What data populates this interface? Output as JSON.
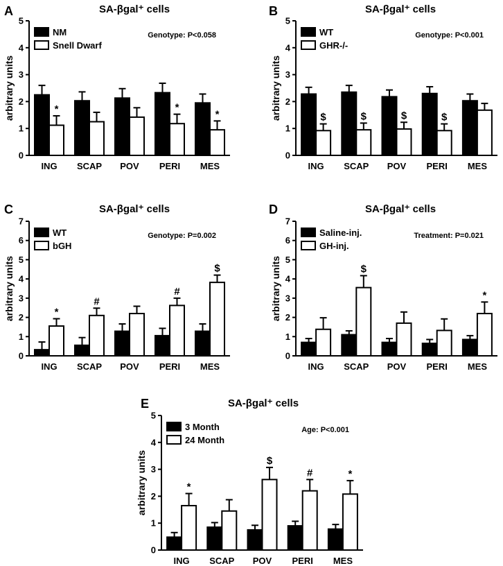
{
  "chart_data": [
    {
      "panel": "A",
      "type": "bar",
      "title": "SA-βgal⁺ cells",
      "xlabel": "",
      "ylabel": "arbitrary units",
      "ylim": [
        0,
        5
      ],
      "yticks": [
        0,
        1,
        2,
        3,
        4,
        5
      ],
      "categories": [
        "ING",
        "SCAP",
        "POV",
        "PERI",
        "MES"
      ],
      "series": [
        {
          "name": "NM",
          "fill": "#000000",
          "values": [
            2.25,
            2.03,
            2.13,
            2.33,
            1.95
          ],
          "errors": [
            0.35,
            0.33,
            0.35,
            0.35,
            0.33
          ]
        },
        {
          "name": "Snell Dwarf",
          "fill": "#ffffff",
          "values": [
            1.12,
            1.25,
            1.42,
            1.18,
            0.95
          ],
          "errors": [
            0.35,
            0.35,
            0.35,
            0.35,
            0.33
          ]
        }
      ],
      "annotations": [
        "*",
        "",
        "",
        "*",
        "*"
      ],
      "stat_text": "Genotype: P<0.058",
      "legend": "top-left"
    },
    {
      "panel": "B",
      "type": "bar",
      "title": "SA-βgal⁺ cells",
      "xlabel": "",
      "ylabel": "arbitrary units",
      "ylim": [
        0,
        5
      ],
      "yticks": [
        0,
        1,
        2,
        3,
        4,
        5
      ],
      "categories": [
        "ING",
        "SCAP",
        "POV",
        "PERI",
        "MES"
      ],
      "series": [
        {
          "name": "WT",
          "fill": "#000000",
          "values": [
            2.28,
            2.35,
            2.18,
            2.3,
            2.03
          ],
          "errors": [
            0.25,
            0.25,
            0.25,
            0.25,
            0.25
          ]
        },
        {
          "name": "GHR-/-",
          "fill": "#ffffff",
          "values": [
            0.92,
            0.95,
            0.98,
            0.92,
            1.68
          ],
          "errors": [
            0.25,
            0.25,
            0.25,
            0.25,
            0.25
          ]
        }
      ],
      "annotations": [
        "$",
        "$",
        "$",
        "$",
        ""
      ],
      "stat_text": "Genotype: P<0.001",
      "legend": "top-left"
    },
    {
      "panel": "C",
      "type": "bar",
      "title": "SA-βgal⁺ cells",
      "xlabel": "",
      "ylabel": "arbitrary units",
      "ylim": [
        0,
        7
      ],
      "yticks": [
        0,
        1,
        2,
        3,
        4,
        5,
        6,
        7
      ],
      "categories": [
        "ING",
        "SCAP",
        "POV",
        "PERI",
        "MES"
      ],
      "series": [
        {
          "name": "WT",
          "fill": "#000000",
          "values": [
            0.32,
            0.55,
            1.28,
            1.05,
            1.28
          ],
          "errors": [
            0.4,
            0.4,
            0.38,
            0.38,
            0.38
          ]
        },
        {
          "name": "bGH",
          "fill": "#ffffff",
          "values": [
            1.55,
            2.1,
            2.2,
            2.62,
            3.82
          ],
          "errors": [
            0.38,
            0.38,
            0.38,
            0.38,
            0.38
          ]
        }
      ],
      "annotations": [
        "*",
        "#",
        "",
        "#",
        "$"
      ],
      "stat_text": "Genotype: P=0.002",
      "legend": "top-left"
    },
    {
      "panel": "D",
      "type": "bar",
      "title": "SA-βgal⁺ cells",
      "xlabel": "",
      "ylabel": "arbitrary units",
      "ylim": [
        0,
        7
      ],
      "yticks": [
        0,
        1,
        2,
        3,
        4,
        5,
        6,
        7
      ],
      "categories": [
        "ING",
        "SCAP",
        "POV",
        "PERI",
        "MES"
      ],
      "series": [
        {
          "name": "Saline-inj.",
          "fill": "#000000",
          "values": [
            0.7,
            1.1,
            0.7,
            0.65,
            0.85
          ],
          "errors": [
            0.2,
            0.2,
            0.2,
            0.2,
            0.2
          ]
        },
        {
          "name": "GH-inj.",
          "fill": "#ffffff",
          "values": [
            1.38,
            3.55,
            1.7,
            1.32,
            2.2
          ],
          "errors": [
            0.6,
            0.62,
            0.58,
            0.6,
            0.6
          ]
        }
      ],
      "annotations": [
        "",
        "$",
        "",
        "",
        "*"
      ],
      "stat_text": "Treatment: P=0.021",
      "legend": "top-left"
    },
    {
      "panel": "E",
      "type": "bar",
      "title": "SA-βgal⁺ cells",
      "xlabel": "",
      "ylabel": "arbitrary units",
      "ylim": [
        0,
        5
      ],
      "yticks": [
        0,
        1,
        2,
        3,
        4,
        5
      ],
      "categories": [
        "ING",
        "SCAP",
        "POV",
        "PERI",
        "MES"
      ],
      "series": [
        {
          "name": "3 Month",
          "fill": "#000000",
          "values": [
            0.48,
            0.85,
            0.75,
            0.9,
            0.78
          ],
          "errors": [
            0.17,
            0.17,
            0.17,
            0.17,
            0.17
          ]
        },
        {
          "name": "24 Month",
          "fill": "#ffffff",
          "values": [
            1.65,
            1.45,
            2.62,
            2.2,
            2.08
          ],
          "errors": [
            0.45,
            0.42,
            0.45,
            0.42,
            0.5
          ]
        }
      ],
      "annotations": [
        "*",
        "",
        "$",
        "#",
        "*"
      ],
      "stat_text": "Age: P<0.001",
      "legend": "top-left"
    }
  ]
}
